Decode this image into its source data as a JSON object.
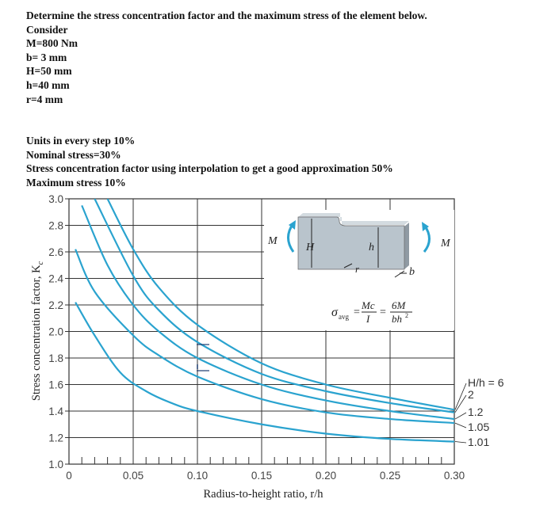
{
  "problem": {
    "title": "Determine the stress concentration factor and the maximum stress of the element below.",
    "consider": "Consider",
    "givens": [
      "M=800 Nm",
      "b= 3 mm",
      "H=50 mm",
      "h=40 mm",
      "r=4 mm"
    ],
    "grading": [
      "Units in every step 10%",
      "Nominal stress=30%",
      "Stress concentration factor using interpolation to get a good approximation 50%",
      "Maximum stress 10%"
    ]
  },
  "chart_data": {
    "type": "line",
    "xlabel": "Radius-to-height ratio, r/h",
    "ylabel": "Stress concentration factor, K",
    "ylabel_sub": "c",
    "xlim": [
      0,
      0.3
    ],
    "ylim": [
      1.0,
      3.0
    ],
    "x_ticks": [
      {
        "value": 0,
        "label": "0"
      },
      {
        "value": 0.05,
        "label": "0.05"
      },
      {
        "value": 0.1,
        "label": "0.10"
      },
      {
        "value": 0.15,
        "label": "0.15"
      },
      {
        "value": 0.2,
        "label": "0.20"
      },
      {
        "value": 0.25,
        "label": "0.25"
      },
      {
        "value": 0.3,
        "label": "0.30"
      }
    ],
    "y_ticks": [
      {
        "value": 1.0,
        "label": "1.0"
      },
      {
        "value": 1.2,
        "label": "1.2"
      },
      {
        "value": 1.4,
        "label": "1.4"
      },
      {
        "value": 1.6,
        "label": "1.6"
      },
      {
        "value": 1.8,
        "label": "1.8"
      },
      {
        "value": 2.0,
        "label": "2.0"
      },
      {
        "value": 2.2,
        "label": "2.2"
      },
      {
        "value": 2.4,
        "label": "2.4"
      },
      {
        "value": 2.6,
        "label": "2.6"
      },
      {
        "value": 2.8,
        "label": "2.8"
      },
      {
        "value": 3.0,
        "label": "3.0"
      }
    ],
    "grid": true,
    "series": [
      {
        "name": "H/h = 6",
        "x": [
          0.03,
          0.05,
          0.07,
          0.1,
          0.15,
          0.2,
          0.25,
          0.3
        ],
        "y": [
          3.0,
          2.62,
          2.33,
          2.05,
          1.76,
          1.6,
          1.5,
          1.41
        ]
      },
      {
        "name": "2",
        "x": [
          0.02,
          0.05,
          0.07,
          0.1,
          0.15,
          0.2,
          0.25,
          0.3
        ],
        "y": [
          3.0,
          2.42,
          2.16,
          1.92,
          1.68,
          1.55,
          1.46,
          1.39
        ]
      },
      {
        "name": "1.2",
        "x": [
          0.01,
          0.03,
          0.05,
          0.07,
          0.1,
          0.15,
          0.2,
          0.25,
          0.3
        ],
        "y": [
          2.95,
          2.5,
          2.2,
          2.0,
          1.8,
          1.6,
          1.48,
          1.4,
          1.34
        ]
      },
      {
        "name": "1.05",
        "x": [
          0.005,
          0.02,
          0.05,
          0.07,
          0.1,
          0.15,
          0.2,
          0.25,
          0.3
        ],
        "y": [
          2.62,
          2.3,
          1.97,
          1.82,
          1.66,
          1.49,
          1.39,
          1.34,
          1.31
        ]
      },
      {
        "name": "1.01",
        "x": [
          0.005,
          0.02,
          0.04,
          0.06,
          0.08,
          0.1,
          0.15,
          0.2,
          0.25,
          0.3
        ],
        "y": [
          2.22,
          1.97,
          1.69,
          1.55,
          1.46,
          1.4,
          1.3,
          1.23,
          1.19,
          1.17
        ]
      }
    ],
    "legend": {
      "prefix": "H/h = ",
      "placement": "right"
    },
    "annotations": {
      "moment_left": "M",
      "moment_right": "M",
      "H": "H",
      "h": "h",
      "r": "r",
      "b": "b"
    },
    "formula": {
      "lhs": "σ",
      "lhs_sub": "avg",
      "eq1": "=",
      "mc": "Mc",
      "i": "I",
      "eq2": "=",
      "sixm": "6M",
      "bh": "bh",
      "bh_sup": "2"
    },
    "colors": {
      "curve": "#2aa3cf",
      "grid": "#333333",
      "inset_block": "#b9c4cc",
      "inset_block_dark": "#8f9aa3",
      "arrow": "#2aa3cf"
    }
  }
}
